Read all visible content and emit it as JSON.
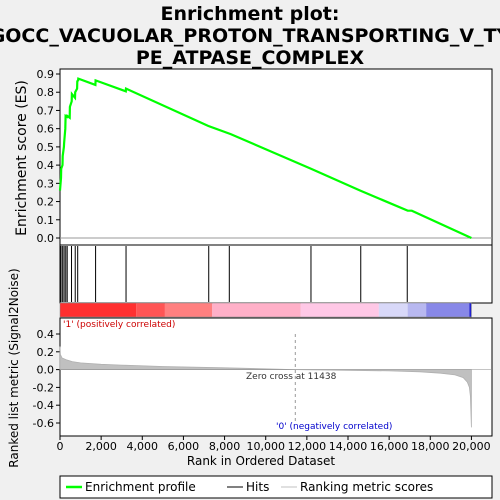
{
  "chart_data": {
    "type": "line",
    "title_lines": [
      "Enrichment plot:",
      "GOCC_VACUOLAR_PROTON_TRANSPORTING_V_TY",
      "PE_ATPASE_COMPLEX"
    ],
    "es_panel": {
      "ylabel": "Enrichment score (ES)",
      "ylim": [
        0,
        0.9
      ],
      "yticks": [
        "0.0",
        "0.1",
        "0.2",
        "0.3",
        "0.4",
        "0.5",
        "0.6",
        "0.7",
        "0.8",
        "0.9"
      ],
      "series": [
        {
          "name": "Enrichment profile",
          "color": "#00ff00",
          "x": [
            0,
            50,
            60,
            120,
            130,
            190,
            200,
            260,
            270,
            340,
            350,
            470,
            480,
            570,
            580,
            730,
            740,
            830,
            840,
            880,
            890,
            1720,
            1730,
            3200,
            3210,
            7200,
            8300,
            12200,
            14600,
            16900,
            17100,
            20000
          ],
          "y": [
            0.26,
            0.33,
            0.38,
            0.4,
            0.45,
            0.5,
            0.52,
            0.6,
            0.67,
            0.665,
            0.67,
            0.66,
            0.72,
            0.75,
            0.79,
            0.77,
            0.8,
            0.82,
            0.86,
            0.865,
            0.875,
            0.84,
            0.865,
            0.805,
            0.82,
            0.615,
            0.57,
            0.38,
            0.26,
            0.15,
            0.15,
            0.0
          ]
        }
      ]
    },
    "hits": [
      50,
      130,
      200,
      280,
      350,
      560,
      740,
      860,
      1730,
      3210,
      7230,
      8230,
      12200,
      14620,
      16880
    ],
    "correlation_bar": {
      "colors": [
        "#ff3030",
        "#ff5555",
        "#ff8080",
        "#ffb0c8",
        "#ffc8e6",
        "#d8d8f8",
        "#b8b8f0",
        "#8888e8",
        "#2020d0"
      ],
      "breaks": [
        0,
        3700,
        5100,
        7400,
        11700,
        15500,
        16900,
        17800,
        19900,
        20000
      ],
      "pos_label": "'1' (positively correlated)",
      "neg_label": "'0' (negatively correlated)"
    },
    "rank_panel": {
      "ylabel": "Ranked list metric (Signal2Noise)",
      "ylim": [
        -0.6,
        0.4
      ],
      "yticks": [
        "0.4",
        "0.2",
        "0.0",
        "-0.2",
        "-0.4",
        "-0.6"
      ],
      "zero_cross_label": "Zero cross at 11438",
      "zero_cross": 11438,
      "profile_x": [
        0,
        20,
        100,
        300,
        600,
        1000,
        2000,
        3000,
        5000,
        8000,
        11438,
        14000,
        16000,
        17500,
        18500,
        19200,
        19600,
        19800,
        19900,
        19950,
        20000
      ],
      "profile_y": [
        0.26,
        0.17,
        0.13,
        0.11,
        0.09,
        0.075,
        0.06,
        0.05,
        0.035,
        0.02,
        0.0,
        -0.008,
        -0.015,
        -0.025,
        -0.04,
        -0.06,
        -0.09,
        -0.14,
        -0.2,
        -0.3,
        -0.65
      ]
    },
    "xaxis": {
      "label": "Rank in Ordered Dataset",
      "range": [
        0,
        21000
      ],
      "ticks": [
        "0",
        "2,000",
        "4,000",
        "6,000",
        "8,000",
        "10,000",
        "12,000",
        "14,000",
        "16,000",
        "18,000",
        "20,000"
      ]
    },
    "legend": {
      "placement": "bottom",
      "entries": [
        "Enrichment profile",
        "Hits",
        "Ranking metric scores"
      ]
    }
  }
}
